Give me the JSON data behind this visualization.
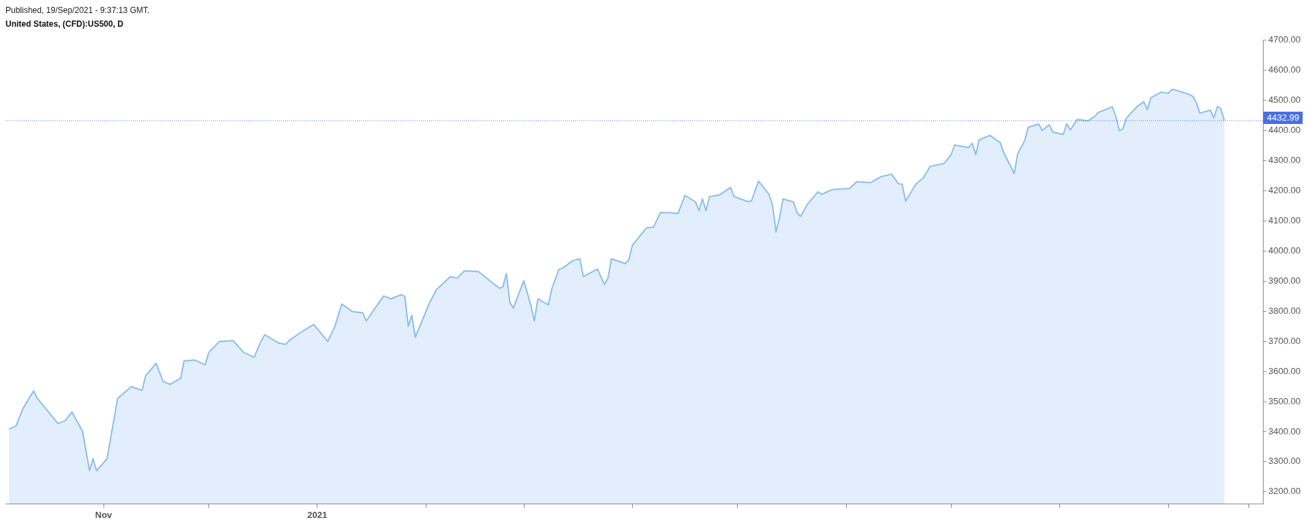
{
  "chart_data": {
    "type": "area",
    "subtitle": "Published, 19/Sep/2021 - 9:37:13 GMT.",
    "title": "United States, (CFD):US500, D",
    "color": "#8bbdee",
    "marker": "none",
    "grid": false,
    "legend": false,
    "x": [
      "2020-10-05",
      "2020-10-07",
      "2020-10-09",
      "2020-10-12",
      "2020-10-13",
      "2020-10-15",
      "2020-10-19",
      "2020-10-21",
      "2020-10-23",
      "2020-10-26",
      "2020-10-28",
      "2020-10-29",
      "2020-10-30",
      "2020-11-02",
      "2020-11-04",
      "2020-11-05",
      "2020-11-09",
      "2020-11-10",
      "2020-11-12",
      "2020-11-13",
      "2020-11-16",
      "2020-11-18",
      "2020-11-20",
      "2020-11-23",
      "2020-11-24",
      "2020-11-27",
      "2020-11-30",
      "2020-12-01",
      "2020-12-04",
      "2020-12-08",
      "2020-12-11",
      "2020-12-14",
      "2020-12-16",
      "2020-12-17",
      "2020-12-21",
      "2020-12-23",
      "2020-12-24",
      "2020-12-28",
      "2020-12-31",
      "2021-01-04",
      "2021-01-06",
      "2021-01-08",
      "2021-01-11",
      "2021-01-14",
      "2021-01-15",
      "2021-01-20",
      "2021-01-22",
      "2021-01-25",
      "2021-01-26",
      "2021-01-27",
      "2021-01-28",
      "2021-01-29",
      "2021-02-02",
      "2021-02-04",
      "2021-02-08",
      "2021-02-10",
      "2021-02-12",
      "2021-02-16",
      "2021-02-18",
      "2021-02-22",
      "2021-02-23",
      "2021-02-24",
      "2021-02-25",
      "2021-02-26",
      "2021-03-01",
      "2021-03-03",
      "2021-03-04",
      "2021-03-05",
      "2021-03-08",
      "2021-03-09",
      "2021-03-11",
      "2021-03-12",
      "2021-03-15",
      "2021-03-17",
      "2021-03-18",
      "2021-03-22",
      "2021-03-24",
      "2021-03-25",
      "2021-03-26",
      "2021-03-30",
      "2021-03-31",
      "2021-04-01",
      "2021-04-05",
      "2021-04-07",
      "2021-04-09",
      "2021-04-12",
      "2021-04-14",
      "2021-04-16",
      "2021-04-19",
      "2021-04-20",
      "2021-04-21",
      "2021-04-22",
      "2021-04-23",
      "2021-04-26",
      "2021-04-29",
      "2021-04-30",
      "2021-05-04",
      "2021-05-05",
      "2021-05-07",
      "2021-05-10",
      "2021-05-11",
      "2021-05-12",
      "2021-05-13",
      "2021-05-14",
      "2021-05-17",
      "2021-05-18",
      "2021-05-19",
      "2021-05-21",
      "2021-05-24",
      "2021-05-25",
      "2021-05-28",
      "2021-06-02",
      "2021-06-04",
      "2021-06-08",
      "2021-06-11",
      "2021-06-14",
      "2021-06-16",
      "2021-06-17",
      "2021-06-18",
      "2021-06-21",
      "2021-06-23",
      "2021-06-25",
      "2021-06-29",
      "2021-07-01",
      "2021-07-02",
      "2021-07-06",
      "2021-07-07",
      "2021-07-08",
      "2021-07-09",
      "2021-07-12",
      "2021-07-15",
      "2021-07-16",
      "2021-07-19",
      "2021-07-20",
      "2021-07-22",
      "2021-07-23",
      "2021-07-26",
      "2021-07-27",
      "2021-07-29",
      "2021-07-30",
      "2021-08-02",
      "2021-08-03",
      "2021-08-04",
      "2021-08-06",
      "2021-08-09",
      "2021-08-11",
      "2021-08-12",
      "2021-08-16",
      "2021-08-17",
      "2021-08-18",
      "2021-08-19",
      "2021-08-20",
      "2021-08-23",
      "2021-08-25",
      "2021-08-26",
      "2021-08-27",
      "2021-08-30",
      "2021-09-01",
      "2021-09-02",
      "2021-09-03",
      "2021-09-07",
      "2021-09-08",
      "2021-09-09",
      "2021-09-10",
      "2021-09-13",
      "2021-09-14",
      "2021-09-15",
      "2021-09-16",
      "2021-09-17"
    ],
    "values": [
      3408,
      3419,
      3477,
      3535,
      3512,
      3483,
      3427,
      3436,
      3465,
      3401,
      3271,
      3310,
      3270,
      3310,
      3443,
      3510,
      3550,
      3545,
      3537,
      3585,
      3627,
      3567,
      3557,
      3577,
      3635,
      3638,
      3622,
      3662,
      3699,
      3702,
      3663,
      3647,
      3701,
      3722,
      3694,
      3690,
      3703,
      3735,
      3756,
      3700,
      3748,
      3824,
      3799,
      3795,
      3768,
      3851,
      3841,
      3855,
      3849,
      3750,
      3787,
      3714,
      3826,
      3871,
      3915,
      3910,
      3934,
      3932,
      3913,
      3876,
      3881,
      3925,
      3829,
      3811,
      3901,
      3819,
      3768,
      3841,
      3821,
      3875,
      3939,
      3943,
      3968,
      3974,
      3915,
      3940,
      3889,
      3909,
      3974,
      3958,
      3972,
      4019,
      4077,
      4079,
      4128,
      4127,
      4124,
      4185,
      4163,
      4134,
      4173,
      4134,
      4180,
      4187,
      4211,
      4181,
      4164,
      4167,
      4232,
      4188,
      4152,
      4063,
      4112,
      4173,
      4163,
      4127,
      4115,
      4156,
      4197,
      4188,
      4204,
      4208,
      4230,
      4227,
      4247,
      4255,
      4223,
      4222,
      4166,
      4224,
      4242,
      4281,
      4291,
      4320,
      4352,
      4344,
      4358,
      4320,
      4369,
      4384,
      4360,
      4327,
      4258,
      4323,
      4367,
      4411,
      4422,
      4401,
      4419,
      4395,
      4387,
      4423,
      4402,
      4437,
      4432,
      4447,
      4460,
      4479,
      4448,
      4400,
      4405,
      4441,
      4479,
      4496,
      4470,
      4509,
      4528,
      4524,
      4537,
      4535,
      4520,
      4514,
      4493,
      4458,
      4468,
      4443,
      4480,
      4473,
      4432.99
    ],
    "xlim": [
      "2020-10-04",
      "2021-09-28"
    ],
    "xticks": [
      {
        "value": "2020-11-01",
        "label": "Nov"
      },
      {
        "value": "2020-12-01",
        "label": null
      },
      {
        "value": "2021-01-01",
        "label": "2021"
      },
      {
        "value": "2021-02-01",
        "label": null
      },
      {
        "value": "2021-03-01",
        "label": null
      },
      {
        "value": "2021-04-01",
        "label": null
      },
      {
        "value": "2021-05-01",
        "label": null
      },
      {
        "value": "2021-06-01",
        "label": null
      },
      {
        "value": "2021-07-01",
        "label": null
      },
      {
        "value": "2021-08-01",
        "label": null
      },
      {
        "value": "2021-09-01",
        "label": null
      },
      {
        "value": "2021-09-24",
        "label": null
      }
    ],
    "ylim": [
      3160,
      4700
    ],
    "yticks": [
      {
        "value": 3200,
        "label": "3200.00"
      },
      {
        "value": 3300,
        "label": "3300.00"
      },
      {
        "value": 3400,
        "label": "3400.00"
      },
      {
        "value": 3500,
        "label": "3500.00"
      },
      {
        "value": 3600,
        "label": "3600.00"
      },
      {
        "value": 3700,
        "label": "3700.00"
      },
      {
        "value": 3800,
        "label": "3800.00"
      },
      {
        "value": 3900,
        "label": "3900.00"
      },
      {
        "value": 4000,
        "label": "4000.00"
      },
      {
        "value": 4100,
        "label": "4100.00"
      },
      {
        "value": 4200,
        "label": "4200.00"
      },
      {
        "value": 4300,
        "label": "4300.00"
      },
      {
        "value": 4400,
        "label": "4400.00"
      },
      {
        "value": 4500,
        "label": "4500.00"
      },
      {
        "value": 4600,
        "label": "4600.00"
      },
      {
        "value": 4700,
        "label": "4700.00"
      }
    ],
    "ref_lines": [
      {
        "axis": "y",
        "value": 4432.99,
        "label": "4432.99",
        "color": "#4a6fe3",
        "line_style": "dotted"
      }
    ]
  }
}
